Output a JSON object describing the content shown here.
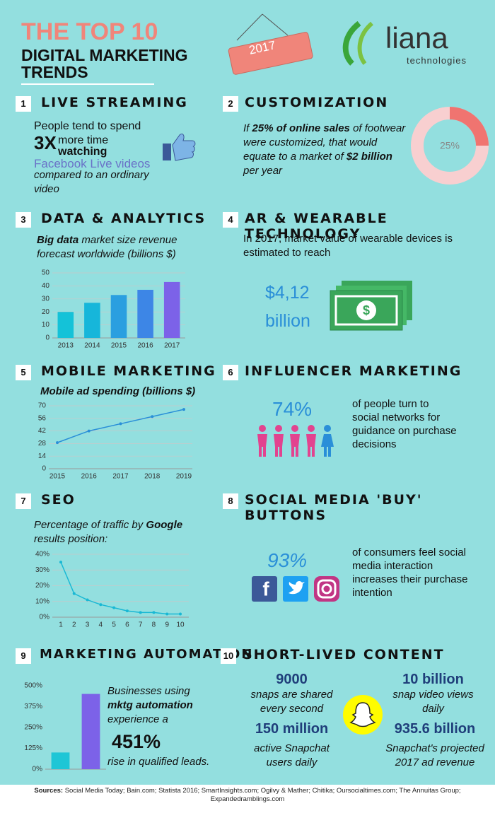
{
  "header": {
    "title": "THE TOP 10",
    "subtitle_1": "DIGITAL MARKETING",
    "subtitle_2": "TRENDS",
    "badge": "2017",
    "logo": "liana",
    "logo_sub": "technologies"
  },
  "s1": {
    "number": "1",
    "title": "LIVE STREAMING",
    "text_1": "People tend to spend",
    "big": "3X",
    "text_2": "more time",
    "text_3": "watching",
    "text_4": "Facebook Live videos",
    "text_5": "compared to an ordinary video"
  },
  "s2": {
    "number": "2",
    "title": "CUSTOMIZATION",
    "text": [
      "If ",
      "25% of online sales",
      " of footwear were customized, that would equate to a market of ",
      "$2 billion",
      " per year"
    ],
    "chart": {
      "type": "pie",
      "values": [
        25
      ],
      "value_labels": [
        "25%"
      ],
      "color": "#f07470",
      "rest_color": "#f8cfd0"
    }
  },
  "s3": {
    "number": "3",
    "title": "DATA & ANALYTICS",
    "text": [
      "Big data",
      " market size revenue forecast worldwide (billions $)"
    ],
    "chart": {
      "type": "bar",
      "categories": [
        "2013",
        "2014",
        "2015",
        "2016",
        "2017"
      ],
      "values": [
        20,
        27,
        33,
        37,
        43
      ],
      "colors": [
        "#14c2d8",
        "#16b6da",
        "#2a9fe0",
        "#3d86e6",
        "#7c62e8"
      ],
      "ylim": [
        0,
        50
      ],
      "yticks": [
        0,
        10,
        20,
        30,
        40,
        50
      ],
      "grid": true
    }
  },
  "s4": {
    "number": "4",
    "title": "AR & WEARABLE TECHNOLOGY",
    "text": "In 2017, market value of wearable devices is estimated to reach",
    "amount": "$4,12",
    "unit": "billion"
  },
  "s5": {
    "number": "5",
    "title": "MOBILE MARKETING",
    "text": "Mobile ad spending (billions $)",
    "chart": {
      "type": "line",
      "categories": [
        "2015",
        "2016",
        "2017",
        "2018",
        "2019"
      ],
      "values": [
        29,
        42,
        50,
        58,
        66
      ],
      "color": "#2a8fd8",
      "ylim": [
        0,
        70
      ],
      "yticks": [
        0,
        14,
        28,
        42,
        56,
        70
      ],
      "grid": true
    }
  },
  "s6": {
    "number": "6",
    "title": "INFLUENCER MARKETING",
    "stat": "74%",
    "text": "of people turn to social networks for guidance on purchase decisions"
  },
  "s7": {
    "number": "7",
    "title": "SEO",
    "text": [
      "Percentage of traffic by ",
      "Google",
      " results position:"
    ],
    "chart": {
      "type": "line",
      "x": [
        1,
        2,
        3,
        4,
        5,
        6,
        7,
        8,
        9,
        10
      ],
      "values": [
        35,
        15,
        11,
        8,
        6,
        4,
        3,
        3,
        2,
        2
      ],
      "color": "#19b8d4",
      "xlim": [
        1,
        10
      ],
      "xticks": [
        1,
        2,
        3,
        4,
        5,
        6,
        7,
        8,
        9,
        10
      ],
      "ylim": [
        0,
        40
      ],
      "yticks": [
        {
          "value": 0,
          "label": "0%"
        },
        {
          "value": 10,
          "label": "10%"
        },
        {
          "value": 20,
          "label": "20%"
        },
        {
          "value": 30,
          "label": "30%"
        },
        {
          "value": 40,
          "label": "40%"
        }
      ],
      "grid": true
    }
  },
  "s8": {
    "number": "8",
    "title": "SOCIAL MEDIA 'BUY' BUTTONS",
    "stat": "93%",
    "text": "of consumers feel social media interaction increases their purchase intention"
  },
  "s9": {
    "number": "9",
    "title": "MARKETING AUTOMATION",
    "text": [
      "Businesses using",
      "mktg automation",
      "experience a"
    ],
    "big": "451%",
    "text_2": "rise in qualified leads.",
    "chart": {
      "type": "bar",
      "categories": [
        null,
        null
      ],
      "values": [
        100,
        451
      ],
      "colors": [
        "#1ec6d6",
        "#7c62e8"
      ],
      "ylim": [
        0,
        500
      ],
      "yticks": [
        {
          "value": 0,
          "label": "0%"
        },
        {
          "value": 125,
          "label": "125%"
        },
        {
          "value": 250,
          "label": "250%"
        },
        {
          "value": 375,
          "label": "375%"
        },
        {
          "value": 500,
          "label": "500%"
        }
      ],
      "grid": false
    }
  },
  "s10": {
    "number": "10",
    "title": "SHORT-LIVED CONTENT",
    "stats": [
      {
        "value": "9000",
        "text": "snaps are shared every second"
      },
      {
        "value": "10 billion",
        "text": "snap video views daily"
      },
      {
        "value": "150 million",
        "text": "active Snapchat users daily"
      },
      {
        "value": "935.6 billion",
        "text": "Snapchat's projected 2017 ad revenue"
      }
    ]
  },
  "sources": {
    "label": "Sources:",
    "text": "Social Media Today; Bain.com; Statista 2016;  SmartInsights.com; Ogilvy & Mather; Chitika; Oursocialtimes.com; The Annuitas Group; Expandedramblings.com"
  }
}
